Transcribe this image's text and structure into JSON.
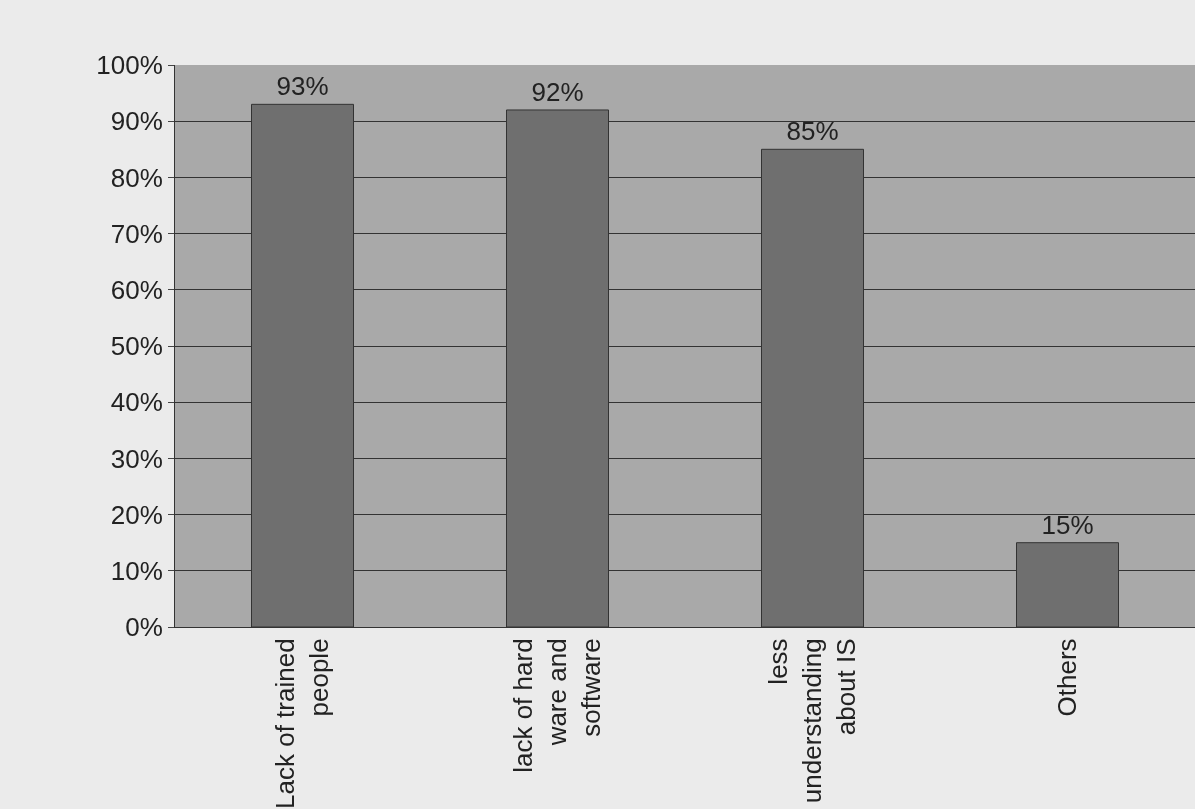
{
  "chart_data": {
    "type": "bar",
    "categories": [
      "Lack of trained people",
      "lack of hard ware and software",
      "less understanding about IS",
      "Others"
    ],
    "values": [
      93,
      92,
      85,
      15
    ],
    "value_labels": [
      "93%",
      "92%",
      "85%",
      "15%"
    ],
    "color": "#6f6f6f",
    "ylim": [
      0,
      100
    ],
    "yticks": [
      {
        "value": 0,
        "label": "0%"
      },
      {
        "value": 10,
        "label": "10%"
      },
      {
        "value": 20,
        "label": "20%"
      },
      {
        "value": 30,
        "label": "30%"
      },
      {
        "value": 40,
        "label": "40%"
      },
      {
        "value": 50,
        "label": "50%"
      },
      {
        "value": 60,
        "label": "60%"
      },
      {
        "value": 70,
        "label": "70%"
      },
      {
        "value": 80,
        "label": "80%"
      },
      {
        "value": 90,
        "label": "90%"
      },
      {
        "value": 100,
        "label": "100%"
      }
    ],
    "grid": "y"
  }
}
